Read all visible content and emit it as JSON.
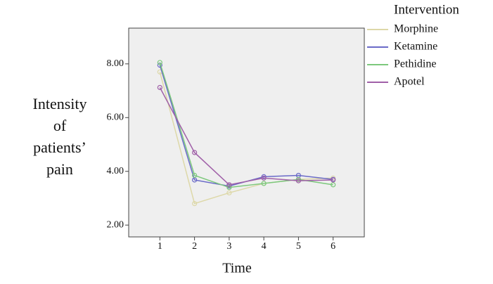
{
  "chart_data": {
    "type": "line",
    "xlabel": "Time",
    "ylabel": [
      "Intensity",
      "of",
      "patients’",
      "pain"
    ],
    "legend_title": "Intervention",
    "x": [
      1,
      2,
      3,
      4,
      5,
      6
    ],
    "xlim": [
      0.1,
      6.9
    ],
    "xticks": [
      1,
      2,
      3,
      4,
      5,
      6
    ],
    "ylim": [
      1.56,
      9.33
    ],
    "yticks": [
      {
        "value": 2,
        "label": "2.00"
      },
      {
        "value": 4,
        "label": "4.00"
      },
      {
        "value": 6,
        "label": "6.00"
      },
      {
        "value": 8,
        "label": "8.00"
      }
    ],
    "series": [
      {
        "name": "Morphine",
        "color": "#ddd8a8",
        "values": [
          7.7,
          2.8,
          3.2,
          3.55,
          3.7,
          3.75
        ]
      },
      {
        "name": "Ketamine",
        "color": "#6a6ac8",
        "values": [
          7.95,
          3.68,
          3.45,
          3.8,
          3.85,
          3.7
        ]
      },
      {
        "name": "Pethidine",
        "color": "#7cc87c",
        "values": [
          8.05,
          3.85,
          3.4,
          3.55,
          3.7,
          3.5
        ]
      },
      {
        "name": "Apotel",
        "color": "#a060a8",
        "values": [
          7.12,
          4.7,
          3.5,
          3.75,
          3.65,
          3.68
        ]
      }
    ]
  }
}
